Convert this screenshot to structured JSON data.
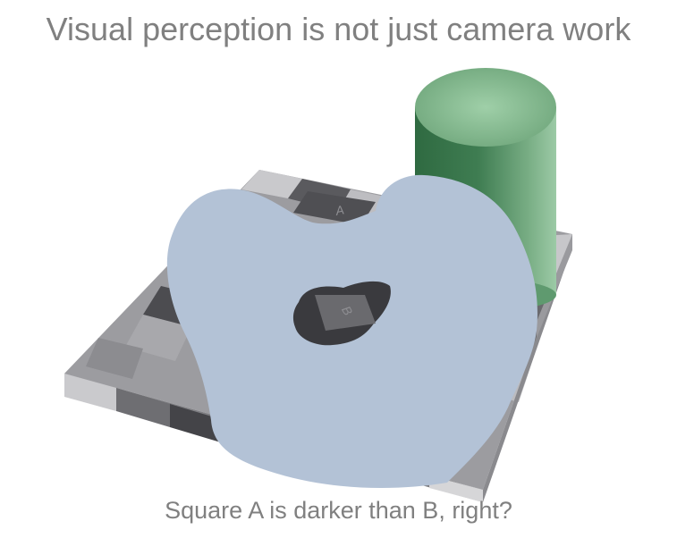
{
  "slide": {
    "title": "Visual perception is not just camera work",
    "caption": "Square A is darker than B, right?"
  },
  "illusion": {
    "label_a": "A",
    "label_b": "B",
    "colors": {
      "occluder": "#b3c2d6",
      "cylinder_top": "#8dbf97",
      "cylinder_body": "#3d7a4f",
      "square_dark": "#58585c",
      "square_light": "#b0b0b4"
    }
  }
}
